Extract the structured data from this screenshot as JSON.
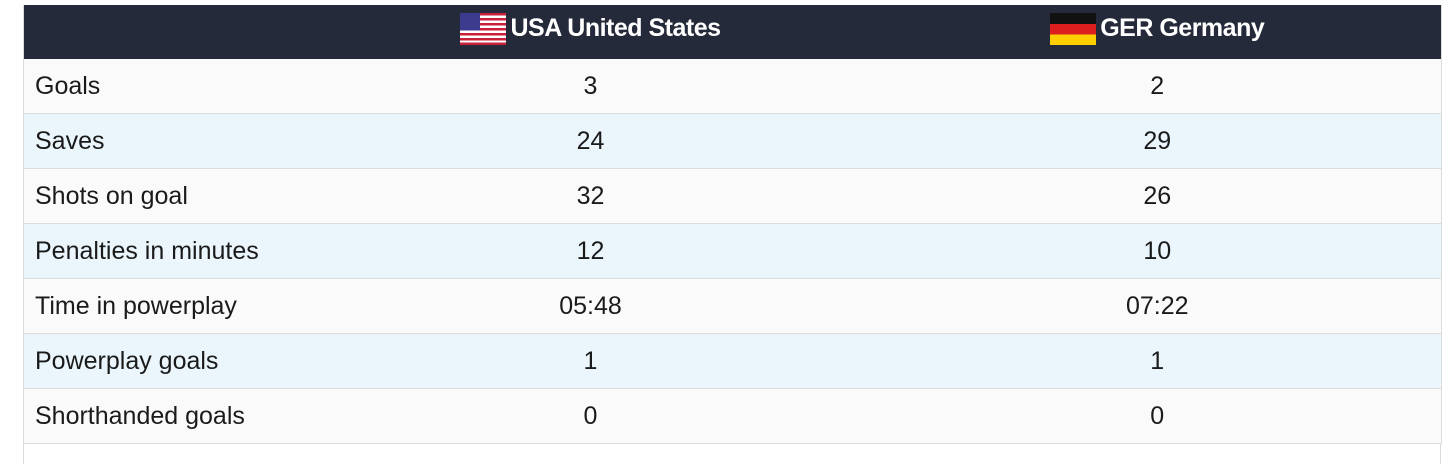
{
  "table": {
    "headers": [
      "USA United States",
      "GER Germany"
    ],
    "rows": [
      [
        "Goals",
        3,
        2
      ],
      [
        "Saves",
        24,
        29
      ],
      [
        "Shots on goal",
        32,
        26
      ],
      [
        "Penalties in minutes",
        12,
        10
      ],
      [
        "Time in powerplay",
        "05:48",
        "07:22"
      ],
      [
        "Powerplay goals",
        1,
        1
      ],
      [
        "Shorthanded goals",
        0,
        0
      ]
    ]
  }
}
